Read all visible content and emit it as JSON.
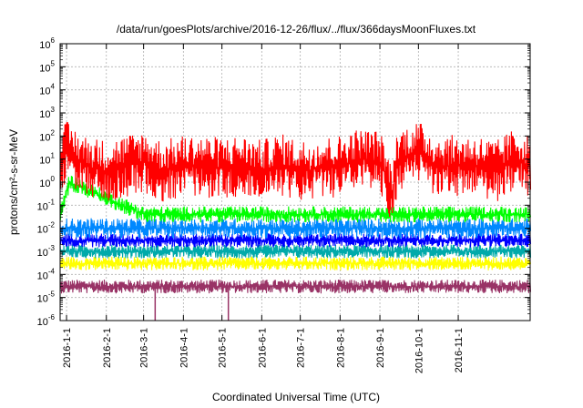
{
  "chart_data": {
    "type": "line",
    "title": "/data/run/goesPlots/archive/2016-12-26/flux/../flux/366daysMoonFluxes.txt",
    "xlabel": "Coordinated Universal Time (UTC)",
    "ylabel": "protons/cm²-s-sr-MeV",
    "yscale": "log",
    "ylim": [
      1e-06,
      1000000.0
    ],
    "xlim": [
      "2015-12-27",
      "2016-12-27"
    ],
    "x_ticks": [
      "2016-1-1",
      "2016-2-1",
      "2016-3-1",
      "2016-4-1",
      "2016-5-1",
      "2016-6-1",
      "2016-7-1",
      "2016-8-1",
      "2016-9-1",
      "2016-10-1",
      "2016-11-1"
    ],
    "x_tick_dates": [
      "2016-01-01",
      "2016-02-01",
      "2016-03-01",
      "2016-04-01",
      "2016-05-01",
      "2016-06-01",
      "2016-07-01",
      "2016-08-01",
      "2016-09-01",
      "2016-10-01",
      "2016-11-01"
    ],
    "y_ticks": [
      {
        "base": "10",
        "exp": "-6"
      },
      {
        "base": "10",
        "exp": "-5"
      },
      {
        "base": "10",
        "exp": "-4"
      },
      {
        "base": "10",
        "exp": "-3"
      },
      {
        "base": "10",
        "exp": "-2"
      },
      {
        "base": "10",
        "exp": "-1"
      },
      {
        "base": "10",
        "exp": "0"
      },
      {
        "base": "10",
        "exp": "1"
      },
      {
        "base": "10",
        "exp": "2"
      },
      {
        "base": "10",
        "exp": "3"
      },
      {
        "base": "10",
        "exp": "4"
      },
      {
        "base": "10",
        "exp": "5"
      },
      {
        "base": "10",
        "exp": "6"
      }
    ],
    "grid": true,
    "series": [
      {
        "color": "#993366",
        "typical": 3e-05,
        "low": 1.5e-05,
        "high": 6e-05,
        "x": [
          "2015-12-27",
          "2016-02-01",
          "2016-03-01",
          "2016-04-01",
          "2016-05-01",
          "2016-06-01",
          "2016-07-01",
          "2016-08-01",
          "2016-09-01",
          "2016-10-01",
          "2016-11-01",
          "2016-12-27"
        ],
        "y": [
          3e-05,
          3e-05,
          3e-05,
          3e-05,
          3e-05,
          3e-05,
          3e-05,
          3e-05,
          3e-05,
          3e-05,
          3e-05,
          3e-05
        ],
        "dips": [
          {
            "x": "2016-03-10",
            "y": 1e-06
          },
          {
            "x": "2016-05-06",
            "y": 1e-06
          }
        ]
      },
      {
        "color": "#ffff00",
        "typical": 0.0003,
        "low": 0.00015,
        "high": 0.0006,
        "x": [
          "2015-12-27",
          "2016-03-01",
          "2016-06-01",
          "2016-09-01",
          "2016-12-27"
        ],
        "y": [
          0.0003,
          0.0003,
          0.0003,
          0.0003,
          0.0003
        ]
      },
      {
        "color": "#00aaaa",
        "typical": 0.001,
        "low": 0.0005,
        "high": 0.002,
        "x": [
          "2015-12-27",
          "2016-03-01",
          "2016-06-01",
          "2016-09-01",
          "2016-12-27"
        ],
        "y": [
          0.001,
          0.001,
          0.001,
          0.001,
          0.001
        ]
      },
      {
        "color": "#0000ff",
        "typical": 0.003,
        "low": 0.0015,
        "high": 0.006,
        "x": [
          "2015-12-27",
          "2016-03-01",
          "2016-06-01",
          "2016-09-01",
          "2016-12-27"
        ],
        "y": [
          0.003,
          0.003,
          0.003,
          0.003,
          0.003
        ]
      },
      {
        "color": "#0088ff",
        "typical": 0.01,
        "low": 0.004,
        "high": 0.03,
        "x": [
          "2015-12-27",
          "2016-03-01",
          "2016-06-01",
          "2016-09-01",
          "2016-12-27"
        ],
        "y": [
          0.01,
          0.01,
          0.01,
          0.01,
          0.01
        ]
      },
      {
        "color": "#00ff00",
        "typical": 0.04,
        "low": 0.02,
        "high": 0.1,
        "x": [
          "2015-12-27",
          "2016-01-03",
          "2016-03-01",
          "2016-06-01",
          "2016-09-01",
          "2016-12-27"
        ],
        "y": [
          0.04,
          1,
          0.04,
          0.04,
          0.04,
          0.04
        ]
      },
      {
        "color": "#ff0000",
        "typical": 5,
        "low": 0.2,
        "high": 100,
        "x": [
          "2015-12-27",
          "2016-01-01",
          "2016-01-15",
          "2016-02-01",
          "2016-02-15",
          "2016-03-01",
          "2016-03-15",
          "2016-04-01",
          "2016-04-15",
          "2016-05-01",
          "2016-05-15",
          "2016-06-01",
          "2016-06-15",
          "2016-07-01",
          "2016-07-15",
          "2016-08-01",
          "2016-08-15",
          "2016-09-01",
          "2016-09-10",
          "2016-09-15",
          "2016-10-01",
          "2016-10-15",
          "2016-11-01",
          "2016-11-15",
          "2016-12-01",
          "2016-12-15",
          "2016-12-27"
        ],
        "y": [
          10,
          20,
          5,
          3,
          5,
          8,
          3,
          5,
          5,
          4,
          5,
          3,
          6,
          3,
          4,
          5,
          10,
          8,
          0.3,
          10,
          20,
          5,
          5,
          5,
          3,
          10,
          5
        ]
      }
    ]
  }
}
